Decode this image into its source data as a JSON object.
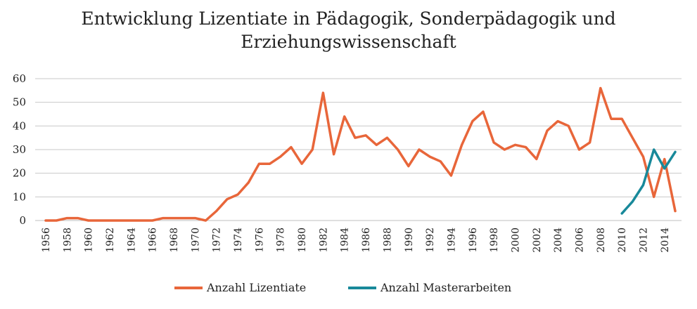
{
  "chart_data": {
    "type": "line",
    "title_line1": "Entwicklung Lizentiate in Pädagogik, Sonderpädagogik und",
    "title_line2": "Erziehungswissenschaft",
    "xlabel": "",
    "ylabel": "",
    "ylim": [
      0,
      60
    ],
    "yticks": [
      "0",
      "10",
      "20",
      "30",
      "40",
      "50",
      "60"
    ],
    "x": [
      1956,
      1957,
      1958,
      1959,
      1960,
      1961,
      1962,
      1963,
      1964,
      1965,
      1966,
      1967,
      1968,
      1969,
      1970,
      1971,
      1972,
      1973,
      1974,
      1975,
      1976,
      1977,
      1978,
      1979,
      1980,
      1981,
      1982,
      1983,
      1984,
      1985,
      1986,
      1987,
      1988,
      1989,
      1990,
      1991,
      1992,
      1993,
      1994,
      1995,
      1996,
      1997,
      1998,
      1999,
      2000,
      2001,
      2002,
      2003,
      2004,
      2005,
      2006,
      2007,
      2008,
      2009,
      2010,
      2011,
      2012,
      2013,
      2014,
      2015
    ],
    "xtick_labels": [
      "1956",
      "1958",
      "1960",
      "1962",
      "1964",
      "1966",
      "1968",
      "1970",
      "1972",
      "1974",
      "1976",
      "1978",
      "1980",
      "1982",
      "1984",
      "1986",
      "1988",
      "1990",
      "1992",
      "1994",
      "1996",
      "1998",
      "2000",
      "2002",
      "2004",
      "2006",
      "2008",
      "2010",
      "2012",
      "2014"
    ],
    "grid": true,
    "legend_position": "bottom",
    "series": [
      {
        "name": "Anzahl Lizentiate",
        "color": "#E8663A",
        "values": [
          0,
          0,
          1,
          1,
          0,
          0,
          0,
          0,
          0,
          0,
          0,
          1,
          1,
          1,
          1,
          0,
          4,
          9,
          11,
          16,
          24,
          24,
          27,
          31,
          24,
          30,
          54,
          28,
          44,
          35,
          36,
          32,
          35,
          30,
          23,
          30,
          27,
          25,
          19,
          32,
          42,
          46,
          33,
          30,
          32,
          31,
          26,
          38,
          42,
          40,
          30,
          33,
          56,
          43,
          43,
          35,
          27,
          10,
          26,
          4
        ]
      },
      {
        "name": "Anzahl Masterarbeiten",
        "color": "#18899A",
        "values": [
          null,
          null,
          null,
          null,
          null,
          null,
          null,
          null,
          null,
          null,
          null,
          null,
          null,
          null,
          null,
          null,
          null,
          null,
          null,
          null,
          null,
          null,
          null,
          null,
          null,
          null,
          null,
          null,
          null,
          null,
          null,
          null,
          null,
          null,
          null,
          null,
          null,
          null,
          null,
          null,
          null,
          null,
          null,
          null,
          null,
          null,
          null,
          null,
          null,
          null,
          null,
          null,
          null,
          null,
          3,
          8,
          15,
          30,
          22,
          29
        ]
      }
    ]
  }
}
